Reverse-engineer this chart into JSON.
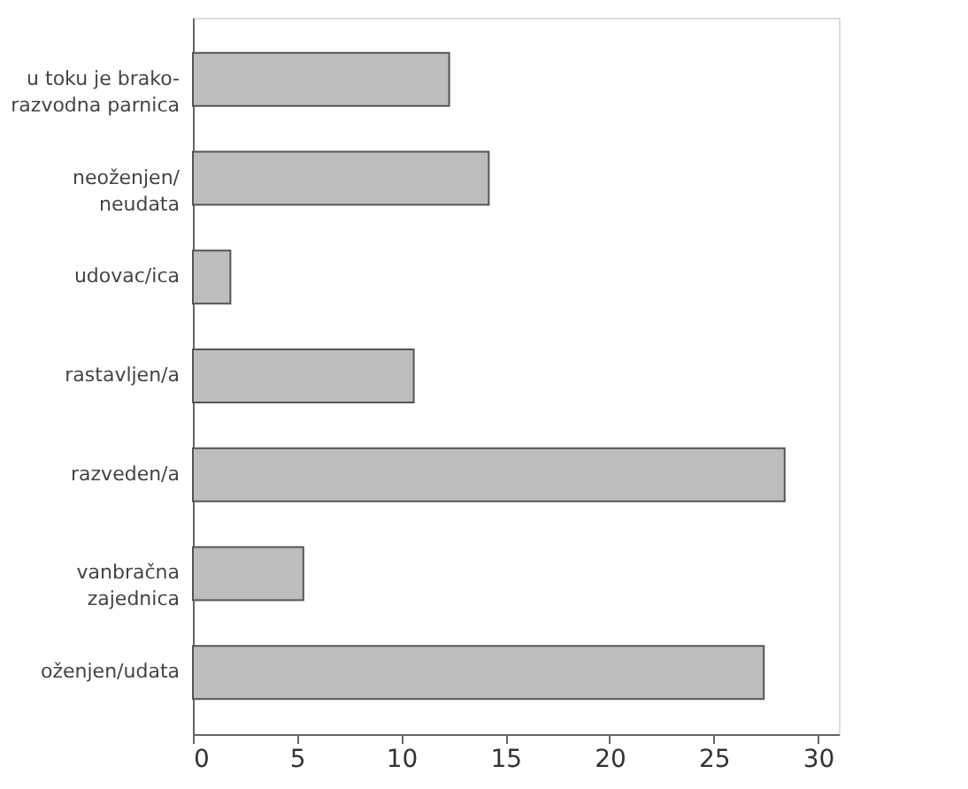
{
  "chart_data": {
    "type": "bar",
    "orientation": "horizontal",
    "categories": [
      "u toku je brako-\nrazvodna parnica",
      "neoženjen/\nneudata",
      "udovac/ica",
      "rastavljen/a",
      "razveden/a",
      "vanbračna\nzajednica",
      "oženjen/udata"
    ],
    "values": [
      12.3,
      14.2,
      1.8,
      10.6,
      28.4,
      5.3,
      27.4
    ],
    "color": "#bdbdbd",
    "xlim": [
      0,
      31
    ],
    "xticks": [
      0,
      5,
      10,
      15,
      20,
      25,
      30
    ],
    "grid": false
  }
}
